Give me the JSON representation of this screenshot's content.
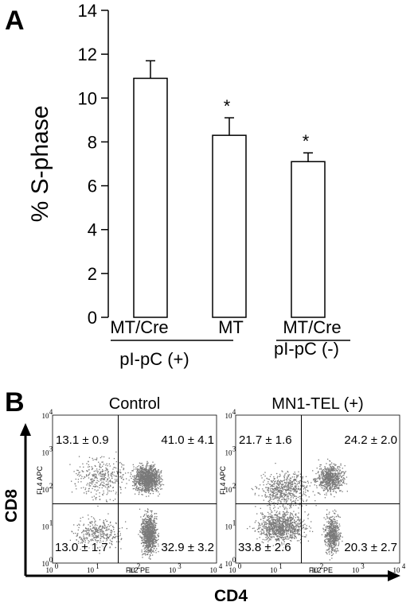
{
  "panel_a_label": "A",
  "panel_b_label": "B",
  "chart_data": [
    {
      "type": "bar",
      "categories": [
        "MT/Cre",
        "MT",
        "MT/Cre"
      ],
      "values": [
        10.9,
        8.3,
        7.1
      ],
      "errors": [
        0.8,
        0.8,
        0.4
      ],
      "significance": [
        "",
        "*",
        "*"
      ],
      "ylabel": "% S-phase",
      "xlabel": "",
      "ylim": [
        0,
        14
      ],
      "yticks": [
        0,
        2,
        4,
        6,
        8,
        10,
        12,
        14
      ],
      "groups": [
        {
          "label": "pI-pC (+)",
          "categories": [
            0,
            1
          ]
        },
        {
          "label": "pI-pC (-)",
          "categories": [
            2
          ]
        }
      ],
      "bar_color": "#ffffff",
      "grid": false
    },
    {
      "type": "scatter",
      "title": "Control",
      "xlabel": "FL2  PE",
      "ylabel": "FL4  APC",
      "x_scale": "log",
      "y_scale": "log",
      "xlim": [
        1,
        10000
      ],
      "ylim": [
        1,
        10000
      ],
      "gate": [
        40,
        40
      ],
      "quadrants": {
        "upper_left": "13.1 ± 0.9",
        "upper_right": "41.0 ± 4.1",
        "lower_left": "13.0 ± 1.7",
        "lower_right": "32.9 ± 3.2"
      },
      "point_color": "#7a7a7a"
    },
    {
      "type": "scatter",
      "title": "MN1-TEL (+)",
      "xlabel": "FL2  PE",
      "ylabel": "FL4  APC",
      "x_scale": "log",
      "y_scale": "log",
      "xlim": [
        1,
        10000
      ],
      "ylim": [
        1,
        10000
      ],
      "gate": [
        40,
        40
      ],
      "quadrants": {
        "upper_left": "21.7 ± 1.6",
        "upper_right": "24.2 ± 2.0",
        "lower_left": "33.8 ± 2.6",
        "lower_right": "20.3 ± 2.7"
      },
      "point_color": "#7a7a7a"
    }
  ],
  "axes_b": {
    "x": "CD4",
    "y": "CD8"
  },
  "tick_labels": {
    "base": "10",
    "exponents": [
      "0",
      "1",
      "2",
      "3",
      "4"
    ]
  }
}
